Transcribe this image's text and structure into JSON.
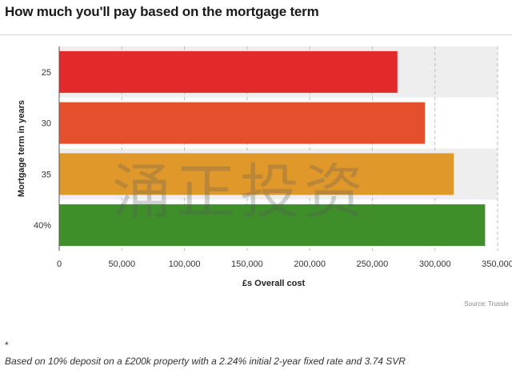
{
  "chart_data": {
    "type": "bar",
    "orientation": "horizontal",
    "title": "How much you'll pay based on the mortgage term",
    "xlabel": "£s Overall cost",
    "ylabel": "Mortgage term in years",
    "categories": [
      "25",
      "30",
      "35",
      "40%"
    ],
    "values": [
      270000,
      292000,
      315000,
      340000
    ],
    "colors": [
      "#e12a29",
      "#e4502b",
      "#e0982a",
      "#3e8e2a"
    ],
    "xlim": [
      0,
      350000
    ],
    "x_ticks": [
      0,
      50000,
      100000,
      150000,
      200000,
      250000,
      300000,
      350000
    ],
    "x_tick_labels": [
      "0",
      "50,000",
      "100,000",
      "150,000",
      "200,000",
      "250,000",
      "300,000",
      "350,000"
    ],
    "grid": "vertical dashed",
    "legend": "none",
    "source": "Source: Trussle"
  },
  "watermark": "涌正投资",
  "footnote": {
    "marker": "*",
    "text": "Based on 10% deposit on a £200k property with a 2.24% initial 2-year fixed rate and 3.74 SVR"
  }
}
